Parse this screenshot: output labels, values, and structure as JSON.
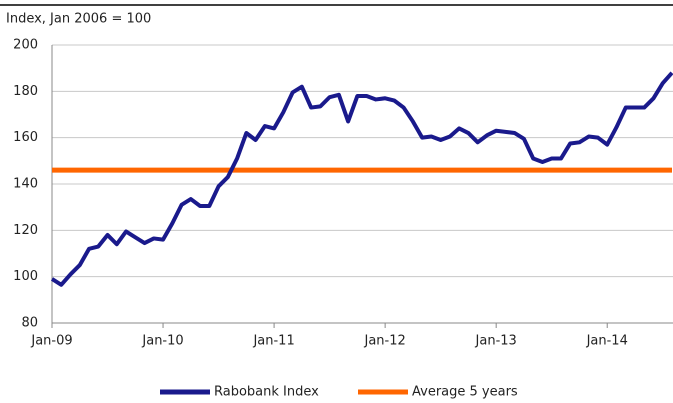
{
  "chart_data": {
    "type": "line",
    "y_axis_label": "Index, Jan 2006 = 100",
    "categories": [
      "Jan-09",
      null,
      null,
      null,
      null,
      null,
      null,
      null,
      null,
      null,
      null,
      null,
      "Jan-10",
      null,
      null,
      null,
      null,
      null,
      null,
      null,
      null,
      null,
      null,
      null,
      "Jan-11",
      null,
      null,
      null,
      null,
      null,
      null,
      null,
      null,
      null,
      null,
      null,
      "Jan-12",
      null,
      null,
      null,
      null,
      null,
      null,
      null,
      null,
      null,
      null,
      null,
      "Jan-13",
      null,
      null,
      null,
      null,
      null,
      null,
      null,
      null,
      null,
      null,
      null,
      "Jan-14",
      null,
      null,
      null,
      null,
      null,
      null,
      null
    ],
    "series": [
      {
        "name": "Rabobank Index",
        "color": "#1a1a8c",
        "values": [
          99,
          96.5,
          101,
          105,
          112,
          113,
          118,
          114,
          119.5,
          117,
          114.5,
          116.5,
          116,
          123,
          131,
          133.5,
          130.5,
          130.5,
          139,
          143,
          151,
          162,
          159,
          165,
          164,
          171,
          179.5,
          182,
          173,
          173.5,
          177.5,
          178.5,
          167,
          178,
          178,
          176.5,
          177,
          176,
          173,
          167,
          160,
          160.5,
          159,
          160.5,
          164,
          162,
          158,
          161,
          163,
          162.5,
          162,
          159.5,
          151,
          149.5,
          151,
          151,
          157.5,
          158,
          160.5,
          160,
          157,
          164.5,
          173,
          173,
          173,
          177,
          183.5,
          188
        ]
      },
      {
        "name": "Average 5 years",
        "color": "#ff6600",
        "values": [
          146,
          146,
          146,
          146,
          146,
          146,
          146,
          146,
          146,
          146,
          146,
          146,
          146,
          146,
          146,
          146,
          146,
          146,
          146,
          146,
          146,
          146,
          146,
          146,
          146,
          146,
          146,
          146,
          146,
          146,
          146,
          146,
          146,
          146,
          146,
          146,
          146,
          146,
          146,
          146,
          146,
          146,
          146,
          146,
          146,
          146,
          146,
          146,
          146,
          146,
          146,
          146,
          146,
          146,
          146,
          146,
          146,
          146,
          146,
          146,
          146,
          146,
          146,
          146,
          146,
          146,
          146,
          146
        ]
      }
    ],
    "ylim": [
      80,
      200
    ],
    "yticks": [
      80,
      100,
      120,
      140,
      160,
      180,
      200
    ],
    "grid": true,
    "legend": "bottom"
  }
}
